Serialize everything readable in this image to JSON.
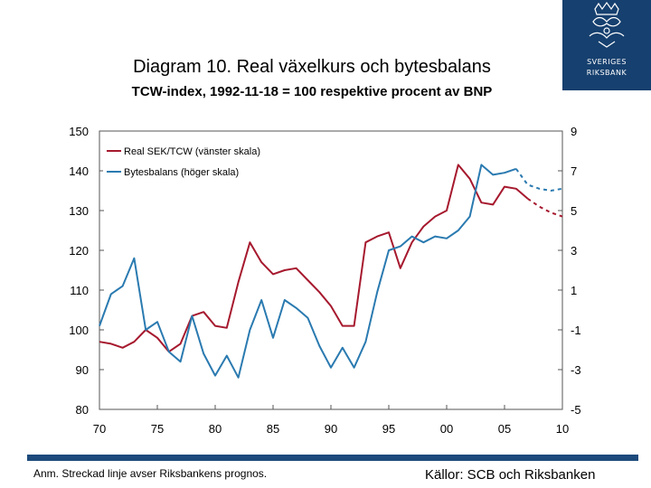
{
  "header": {
    "title": "Diagram 10. Real växelkurs och bytesbalans",
    "subtitle": "TCW-index, 1992-11-18 = 100 respektive procent av BNP"
  },
  "logo": {
    "line1": "SVERIGES",
    "line2": "RIKSBANK"
  },
  "footer": {
    "note": "Anm. Streckad linje avser Riksbankens prognos.",
    "source": "Källor: SCB och Riksbanken"
  },
  "colors": {
    "sek": "#a6192e",
    "bop": "#2a7ab0",
    "brand": "#16406f"
  },
  "chart_data": {
    "type": "line",
    "title": "Diagram 10. Real växelkurs och bytesbalans",
    "subtitle": "TCW-index, 1992-11-18 = 100 respektive procent av BNP",
    "x_ticks": [
      "70",
      "75",
      "80",
      "85",
      "90",
      "95",
      "00",
      "05",
      "10"
    ],
    "left_axis": {
      "ticks": [
        "150",
        "140",
        "130",
        "120",
        "110",
        "100",
        "90",
        "80"
      ],
      "ylim": [
        80,
        150
      ],
      "label": "vänster skala"
    },
    "right_axis": {
      "ticks": [
        "9",
        "7",
        "5",
        "3",
        "1",
        "-1",
        "-3",
        "-5"
      ],
      "ylim": [
        -5,
        9
      ],
      "label": "höger skala"
    },
    "xlim": [
      1970,
      2010
    ],
    "legend": {
      "position": "top-left",
      "entries": [
        "Real SEK/TCW (vänster skala)",
        "Bytesbalans (höger skala)"
      ]
    },
    "series": [
      {
        "name": "Real SEK/TCW (vänster skala)",
        "axis": "left",
        "x": [
          1970,
          1971,
          1972,
          1973,
          1974,
          1975,
          1976,
          1977,
          1978,
          1979,
          1980,
          1981,
          1982,
          1983,
          1984,
          1985,
          1986,
          1987,
          1988,
          1989,
          1990,
          1991,
          1992,
          1993,
          1994,
          1995,
          1996,
          1997,
          1998,
          1999,
          2000,
          2001,
          2002,
          2003,
          2004,
          2005,
          2006,
          2007
        ],
        "values": [
          97,
          96.5,
          95.5,
          97,
          100,
          98,
          94.5,
          96.5,
          103.5,
          104.5,
          101,
          100.5,
          112,
          122,
          117,
          114,
          115,
          115.5,
          112.5,
          109.5,
          106,
          101,
          101,
          122,
          123.5,
          124.5,
          115.5,
          122,
          126,
          128.5,
          130,
          141.5,
          138,
          132,
          131.5,
          136,
          135.5,
          133
        ],
        "forecast_x": [
          2007,
          2008,
          2009,
          2010
        ],
        "forecast_values": [
          133,
          131,
          129.5,
          128.5
        ]
      },
      {
        "name": "Bytesbalans (höger skala)",
        "axis": "right",
        "x": [
          1970,
          1971,
          1972,
          1973,
          1974,
          1975,
          1976,
          1977,
          1978,
          1979,
          1980,
          1981,
          1982,
          1983,
          1984,
          1985,
          1986,
          1987,
          1988,
          1989,
          1990,
          1991,
          1992,
          1993,
          1994,
          1995,
          1996,
          1997,
          1998,
          1999,
          2000,
          2001,
          2002,
          2003,
          2004,
          2005,
          2006
        ],
        "values": [
          -0.8,
          0.8,
          1.2,
          2.6,
          -1,
          -0.6,
          -2.1,
          -2.6,
          -0.3,
          -2.2,
          -3.3,
          -2.3,
          -3.4,
          -1,
          0.5,
          -1.4,
          0.5,
          0.1,
          -0.4,
          -1.8,
          -2.9,
          -1.9,
          -2.9,
          -1.6,
          0.9,
          3,
          3.2,
          3.7,
          3.4,
          3.7,
          3.6,
          4,
          4.7,
          7.3,
          6.8,
          6.9,
          7.1
        ],
        "forecast_x": [
          2006,
          2007,
          2008,
          2009,
          2010
        ],
        "forecast_values": [
          7.1,
          6.3,
          6.1,
          6,
          6.1
        ]
      }
    ]
  }
}
